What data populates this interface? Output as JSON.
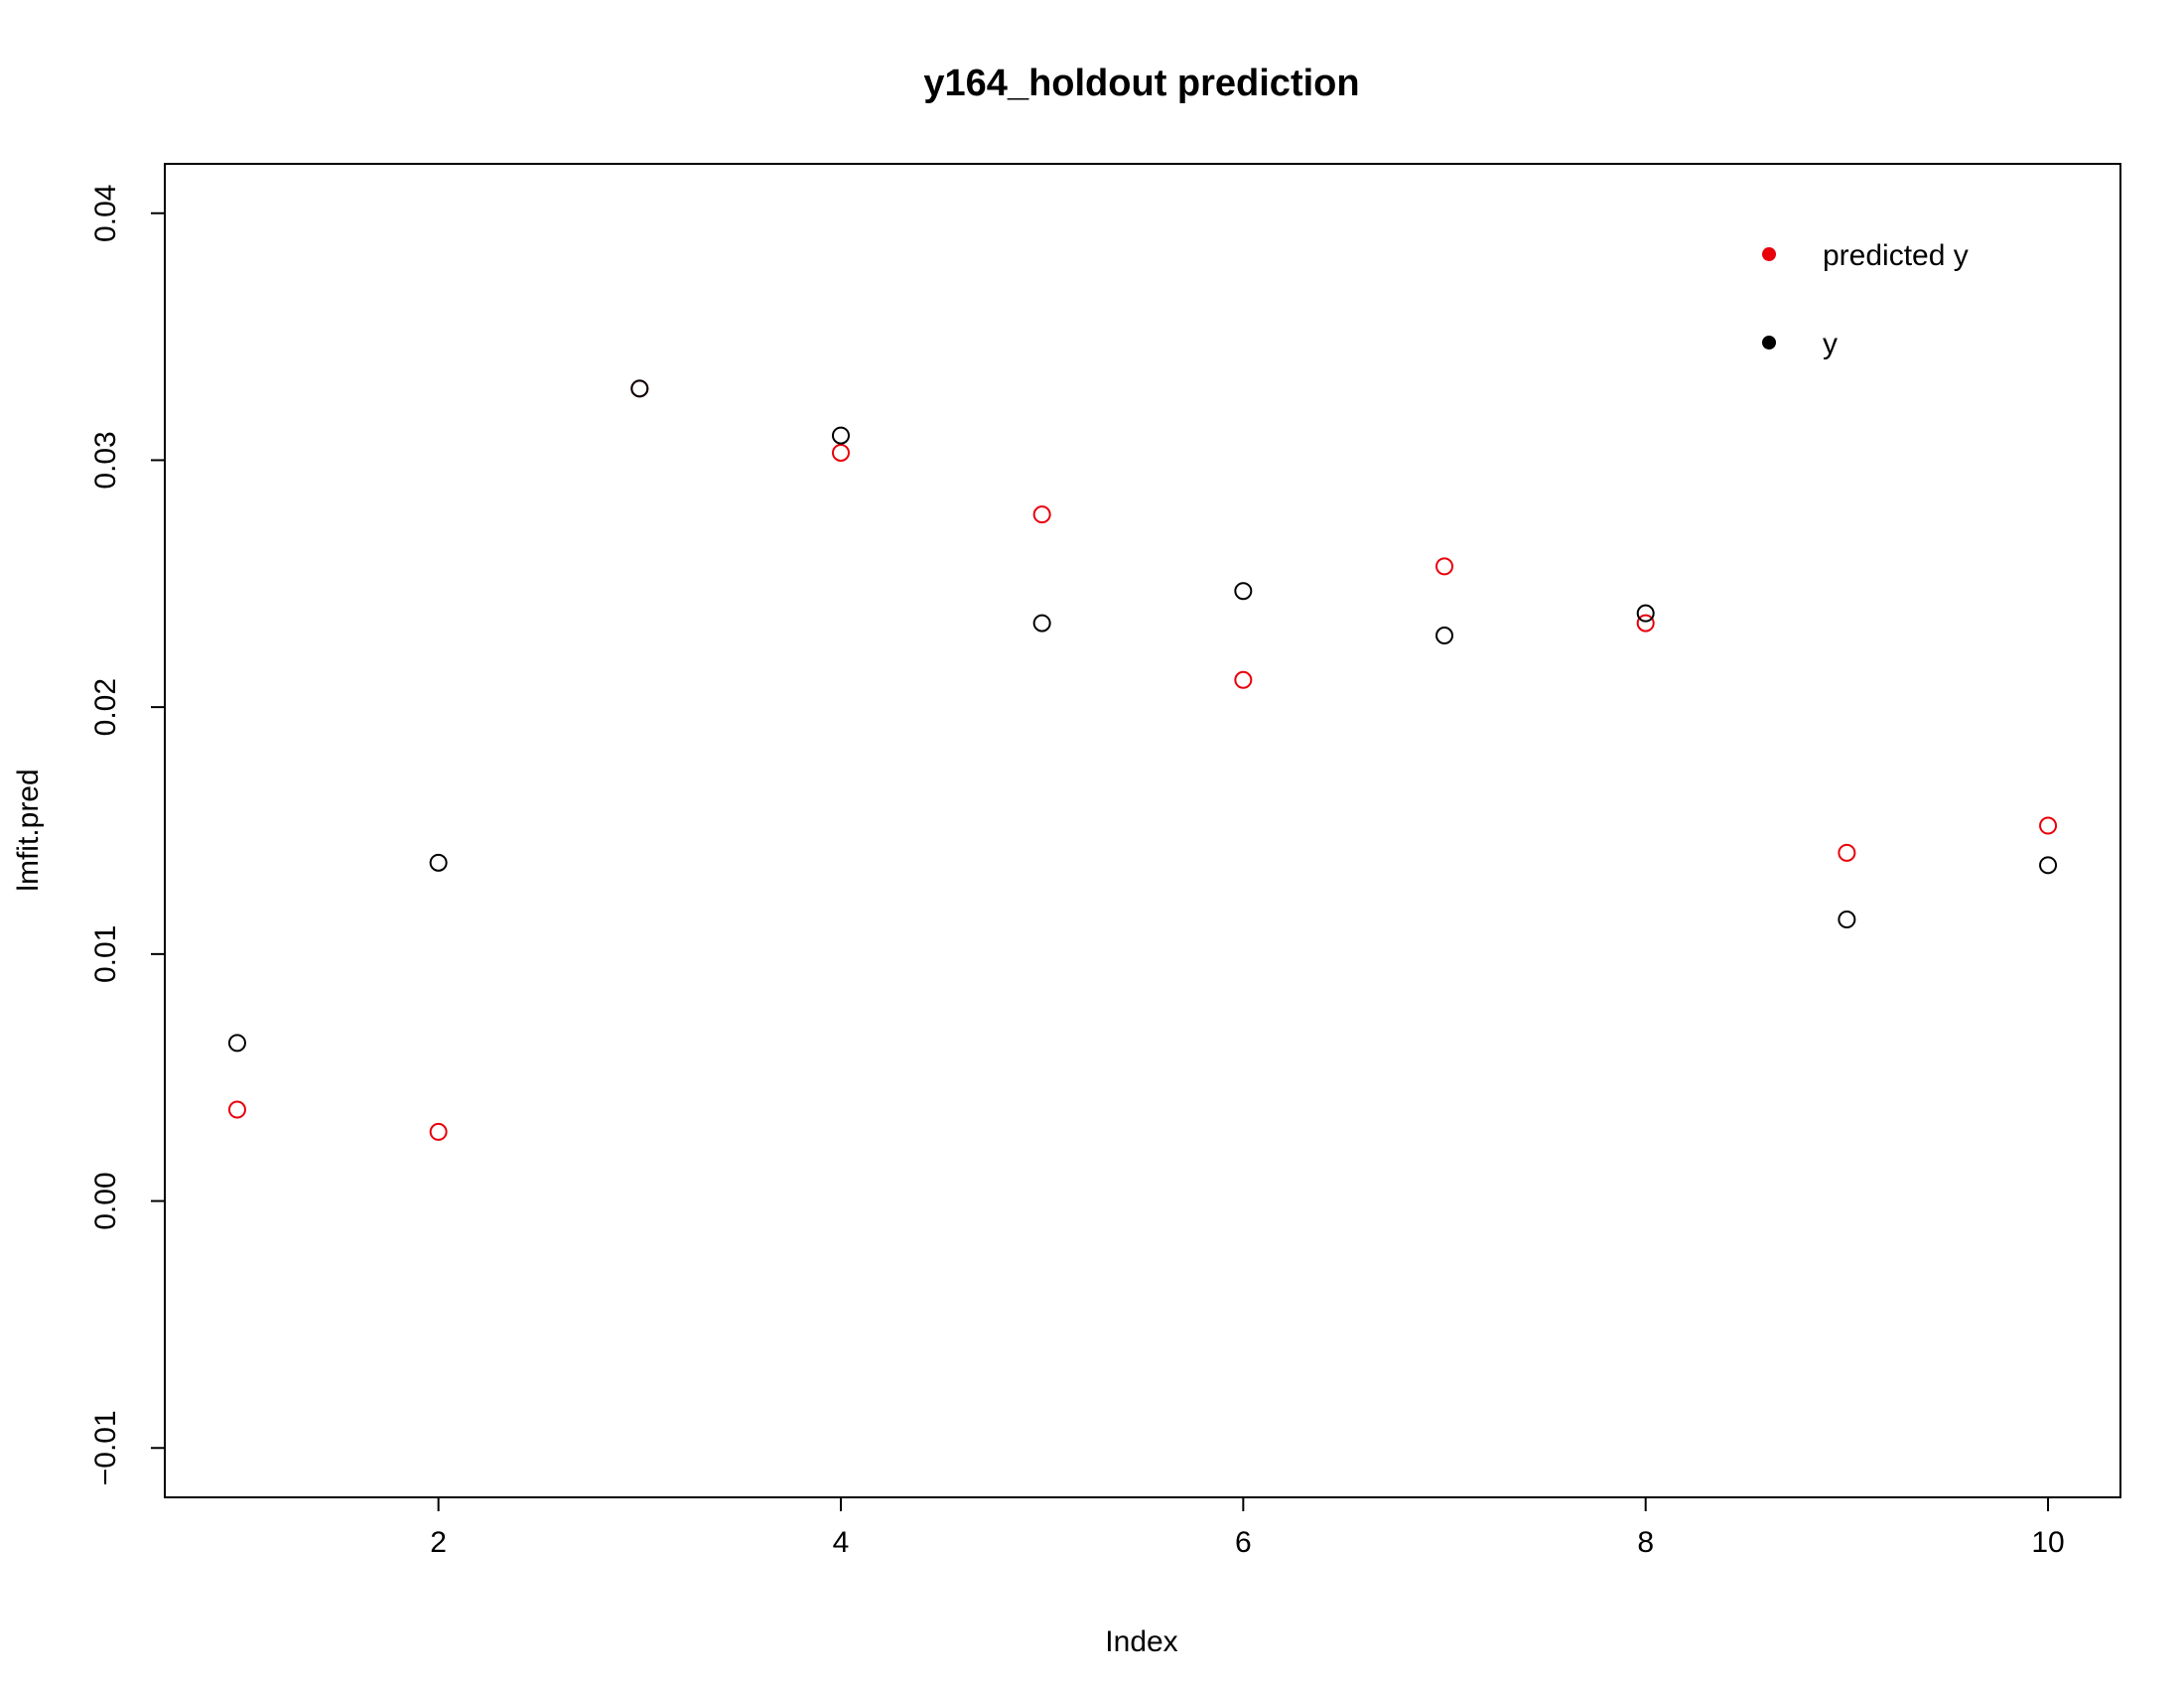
{
  "chart_data": {
    "type": "scatter",
    "title": "y164_holdout prediction",
    "xlabel": "Index",
    "ylabel": "lmfit.pred",
    "xlim": [
      0.64,
      10.36
    ],
    "ylim": [
      -0.012,
      0.042
    ],
    "xticks": [
      2,
      4,
      6,
      8,
      10
    ],
    "xtick_labels": [
      "2",
      "4",
      "6",
      "8",
      "10"
    ],
    "yticks": [
      -0.01,
      0.0,
      0.01,
      0.02,
      0.03,
      0.04
    ],
    "ytick_labels": [
      "−0.01",
      "0.00",
      "0.01",
      "0.02",
      "0.03",
      "0.04"
    ],
    "grid": false,
    "legend_position": "top-right",
    "series": [
      {
        "name": "predicted y",
        "color": "#e8000b",
        "marker": "open-circle",
        "x": [
          1,
          2,
          3,
          4,
          5,
          6,
          7,
          8,
          9,
          10
        ],
        "y": [
          0.0037,
          0.0028,
          0.0329,
          0.0303,
          0.0278,
          0.0211,
          0.0257,
          0.0234,
          0.0141,
          0.0152
        ]
      },
      {
        "name": "y",
        "color": "#000000",
        "marker": "open-circle",
        "x": [
          1,
          2,
          3,
          4,
          5,
          6,
          7,
          8,
          9,
          10
        ],
        "y": [
          0.0064,
          0.0137,
          0.0329,
          0.031,
          0.0234,
          0.0247,
          0.0229,
          0.0238,
          0.0114,
          0.0136
        ]
      }
    ]
  }
}
